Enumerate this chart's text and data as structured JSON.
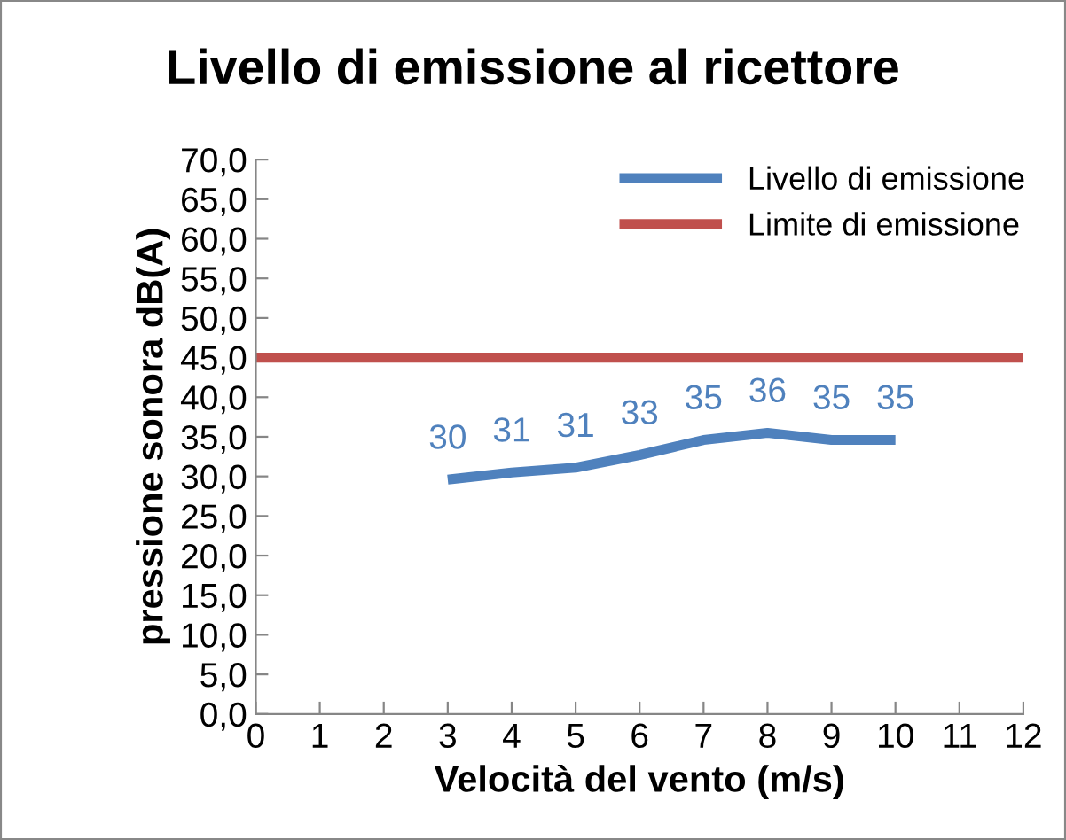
{
  "chart_data": {
    "type": "line",
    "title": "Livello di emissione al ricettore",
    "xlabel": "Velocità del vento (m/s)",
    "ylabel": "pressione sonora dB(A)",
    "series": [
      {
        "name": "Livello di emissione",
        "color": "#4f81bd",
        "x": [
          3,
          4,
          5,
          6,
          7,
          8,
          9,
          10
        ],
        "values": [
          29.6,
          30.5,
          31.1,
          32.7,
          34.6,
          35.5,
          34.6,
          34.6
        ],
        "value_labels": [
          "30",
          "31",
          "31",
          "33",
          "35",
          "36",
          "35",
          "35"
        ]
      },
      {
        "name": "Limite di emissione",
        "color": "#c0504d",
        "x": [
          0,
          12
        ],
        "values": [
          45,
          45
        ]
      }
    ],
    "xlim": [
      0,
      12
    ],
    "xticks": [
      0,
      1,
      2,
      3,
      4,
      5,
      6,
      7,
      8,
      9,
      10,
      11,
      12
    ],
    "ylim": [
      0,
      70
    ],
    "yticks": [
      {
        "value": 0,
        "label": "0,0"
      },
      {
        "value": 5,
        "label": "5,0"
      },
      {
        "value": 10,
        "label": "10,0"
      },
      {
        "value": 15,
        "label": "15,0"
      },
      {
        "value": 20,
        "label": "20,0"
      },
      {
        "value": 25,
        "label": "25,0"
      },
      {
        "value": 30,
        "label": "30,0"
      },
      {
        "value": 35,
        "label": "35,0"
      },
      {
        "value": 40,
        "label": "40,0"
      },
      {
        "value": 45,
        "label": "45,0"
      },
      {
        "value": 50,
        "label": "50,0"
      },
      {
        "value": 55,
        "label": "55,0"
      },
      {
        "value": 60,
        "label": "60,0"
      },
      {
        "value": 65,
        "label": "65,0"
      },
      {
        "value": 70,
        "label": "70,0"
      }
    ],
    "grid": false,
    "legend": "top right",
    "marker": "none",
    "line_style": "solid"
  }
}
